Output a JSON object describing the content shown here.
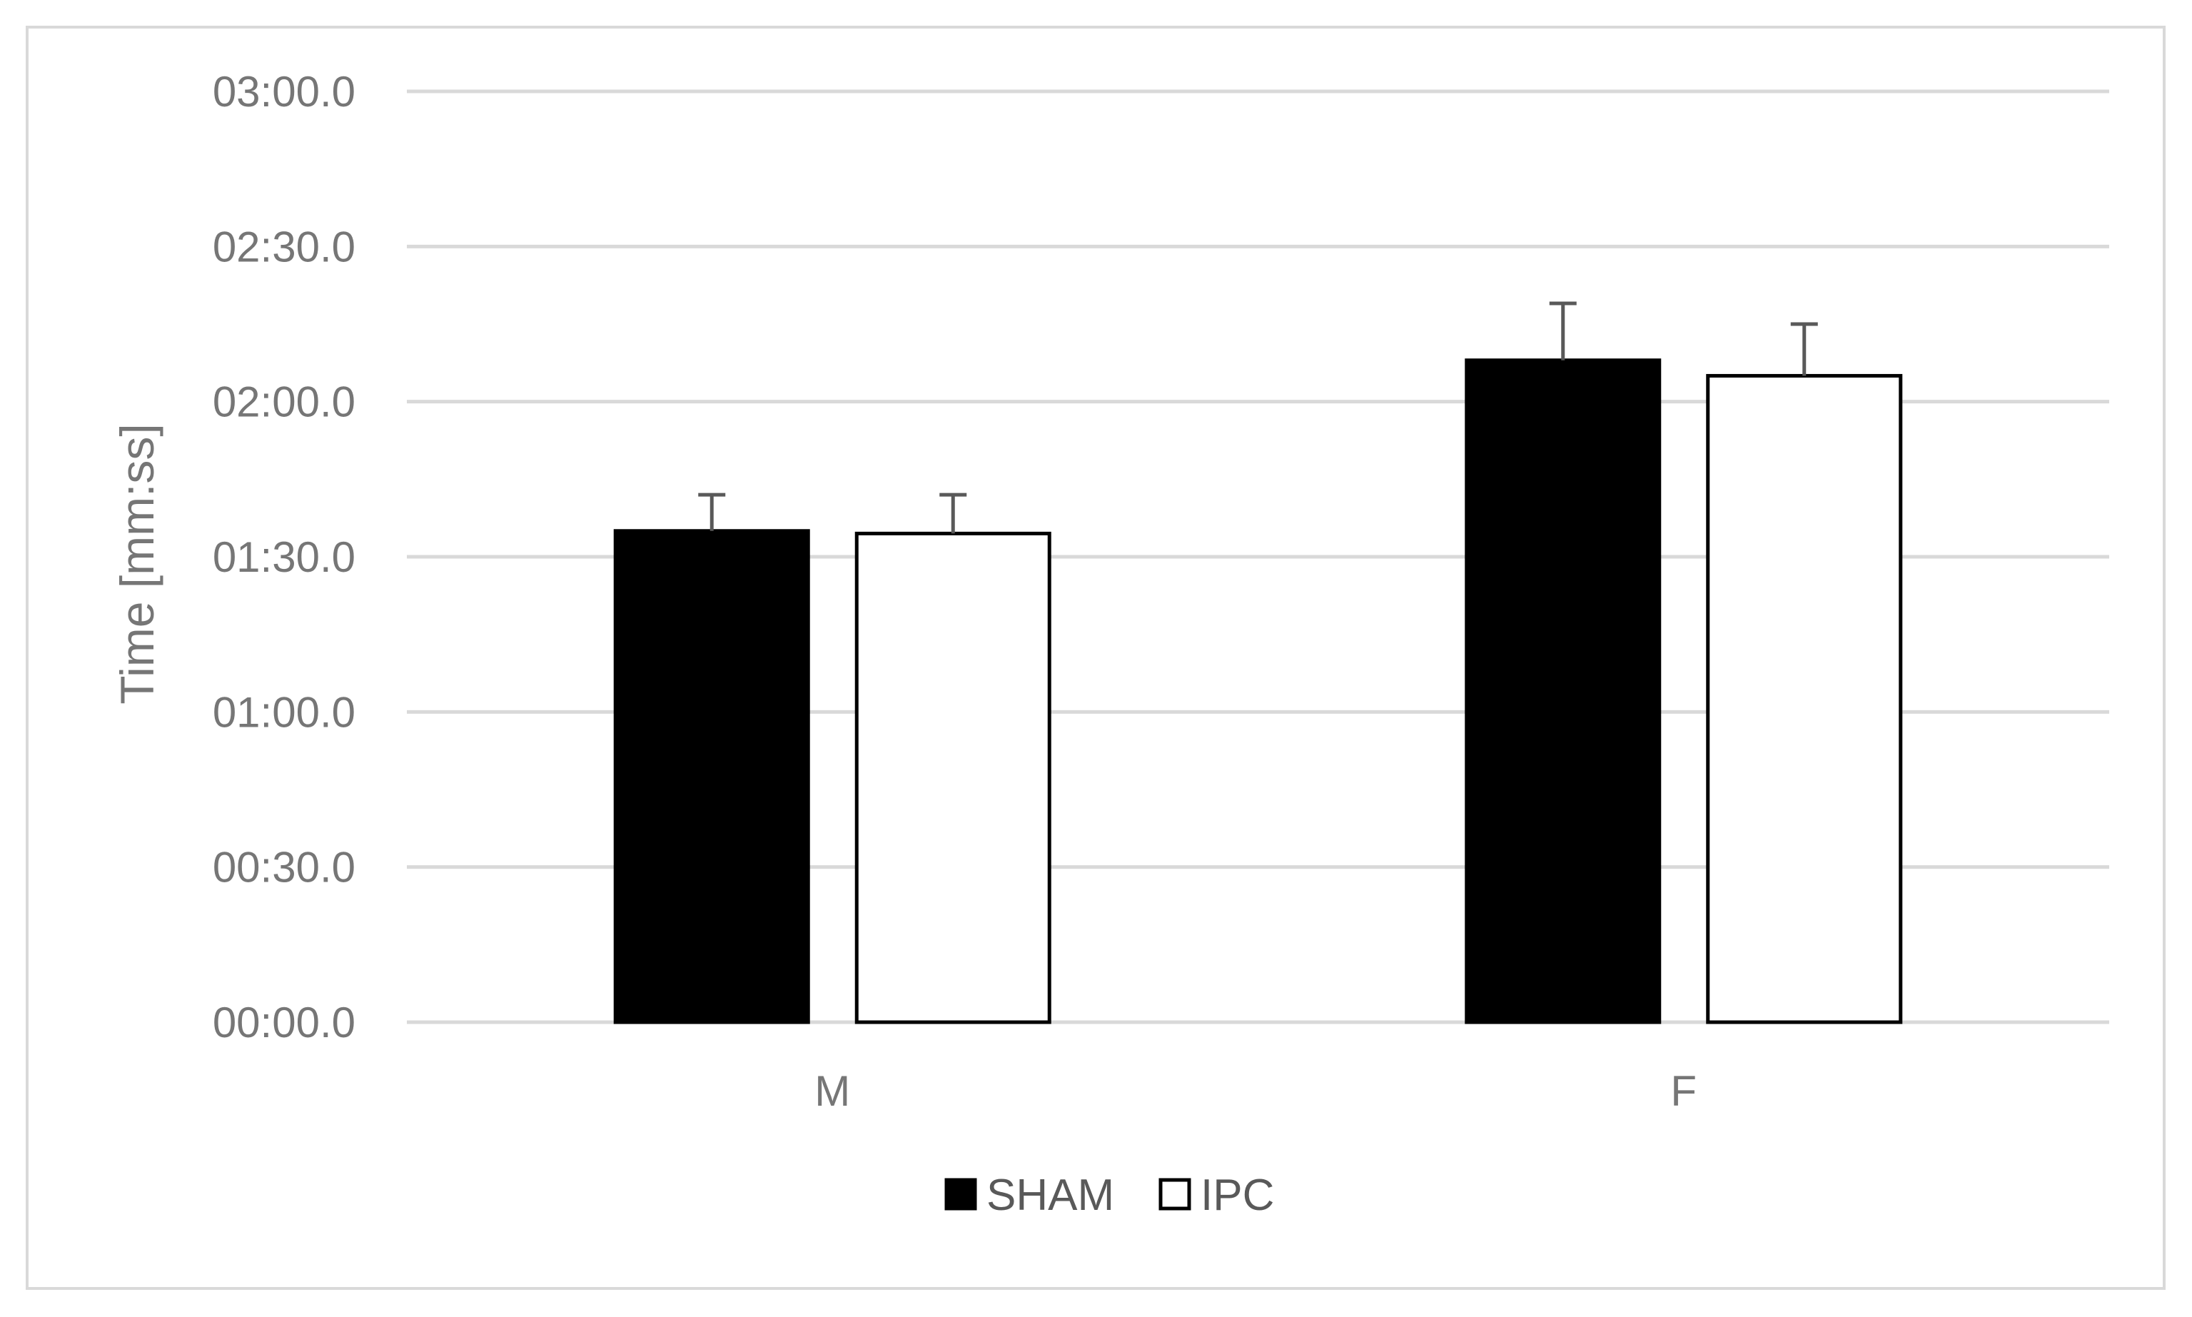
{
  "chart_data": {
    "type": "bar",
    "title": "",
    "xlabel": "",
    "ylabel": "Time [mm:ss]",
    "ylim": [
      0,
      180
    ],
    "yticks": [
      0,
      30,
      60,
      90,
      120,
      150,
      180
    ],
    "ytick_labels": [
      "00:00.0",
      "00:30.0",
      "01:00.0",
      "01:30.0",
      "02:00.0",
      "02:30.0",
      "03:00.0"
    ],
    "categories": [
      "M",
      "F"
    ],
    "series": [
      {
        "name": "SHAM",
        "values": [
          95,
          128
        ],
        "errors": [
          7,
          11
        ],
        "fill": "#000000",
        "stroke": "#000000"
      },
      {
        "name": "IPC",
        "values": [
          94.5,
          125
        ],
        "errors": [
          7.5,
          10
        ],
        "fill": "#ffffff",
        "stroke": "#000000"
      }
    ],
    "grid": true,
    "legend": "bottom",
    "colors": {
      "grid": "#d9d9d9",
      "error_bar": "#595959",
      "text": "#767676"
    }
  }
}
